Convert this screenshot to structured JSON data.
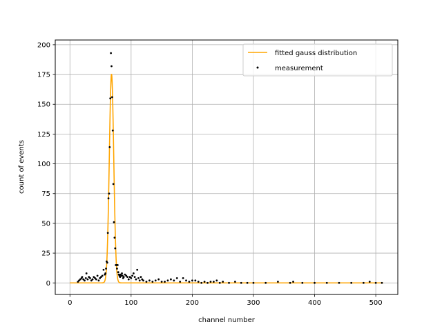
{
  "chart_data": {
    "type": "scatter",
    "xlabel": "channel number",
    "ylabel": "count of events",
    "xlim": [
      -24,
      536
    ],
    "ylim": [
      -9.7,
      204
    ],
    "x_ticks": [
      0,
      100,
      200,
      300,
      400,
      500
    ],
    "y_ticks": [
      0,
      25,
      50,
      75,
      100,
      125,
      150,
      175,
      200
    ],
    "grid": true,
    "legend": "top-right",
    "colors": {
      "fit": "#ffa500",
      "measurement": "#000000",
      "grid": "#b0b0b0"
    },
    "fit": {
      "name": "fitted gauss distribution",
      "model": "gaussian",
      "amplitude": 175.5,
      "mean": 68,
      "sigma": 3.6,
      "x_range": [
        0,
        512
      ]
    },
    "series": [
      {
        "name": "measurement",
        "x": [
          13,
          15,
          17,
          19,
          20,
          22,
          24,
          26,
          27,
          29,
          31,
          33,
          35,
          37,
          39,
          41,
          43,
          45,
          47,
          49,
          51,
          53,
          55,
          57,
          58,
          59,
          60,
          61,
          62,
          63,
          64,
          65,
          66,
          67,
          68,
          69,
          70,
          71,
          72,
          73,
          74,
          75,
          76,
          77,
          78,
          79,
          80,
          81,
          82,
          83,
          84,
          85,
          86,
          87,
          88,
          90,
          92,
          94,
          96,
          98,
          100,
          102,
          104,
          106,
          108,
          110,
          112,
          114,
          116,
          118,
          120,
          125,
          130,
          135,
          140,
          145,
          150,
          155,
          160,
          165,
          170,
          175,
          180,
          185,
          190,
          195,
          200,
          205,
          210,
          215,
          220,
          225,
          230,
          235,
          240,
          245,
          250,
          260,
          270,
          280,
          290,
          300,
          320,
          340,
          360,
          365,
          380,
          400,
          420,
          440,
          460,
          480,
          490,
          500,
          510
        ],
        "y": [
          1,
          2,
          3,
          4,
          5,
          3,
          2,
          4,
          8,
          3,
          5,
          4,
          2,
          3,
          5,
          4,
          3,
          6,
          2,
          4,
          5,
          6,
          11,
          7,
          8,
          12,
          18,
          17,
          42,
          71,
          75,
          114,
          155,
          193,
          182,
          156,
          128,
          83,
          51,
          38,
          29,
          15,
          15,
          12,
          15,
          9,
          7,
          6,
          5,
          7,
          6,
          8,
          6,
          4,
          5,
          7,
          6,
          5,
          3,
          5,
          4,
          6,
          8,
          5,
          3,
          11,
          4,
          2,
          5,
          3,
          2,
          1,
          2,
          1,
          2,
          3,
          1,
          1,
          2,
          3,
          2,
          4,
          1,
          4,
          2,
          1,
          2,
          2,
          1,
          0,
          1,
          0,
          1,
          1,
          2,
          0,
          1,
          0,
          1,
          0,
          0,
          0,
          0,
          1,
          0,
          1,
          0,
          0,
          0,
          0,
          0,
          0,
          1,
          0,
          0
        ]
      }
    ]
  }
}
